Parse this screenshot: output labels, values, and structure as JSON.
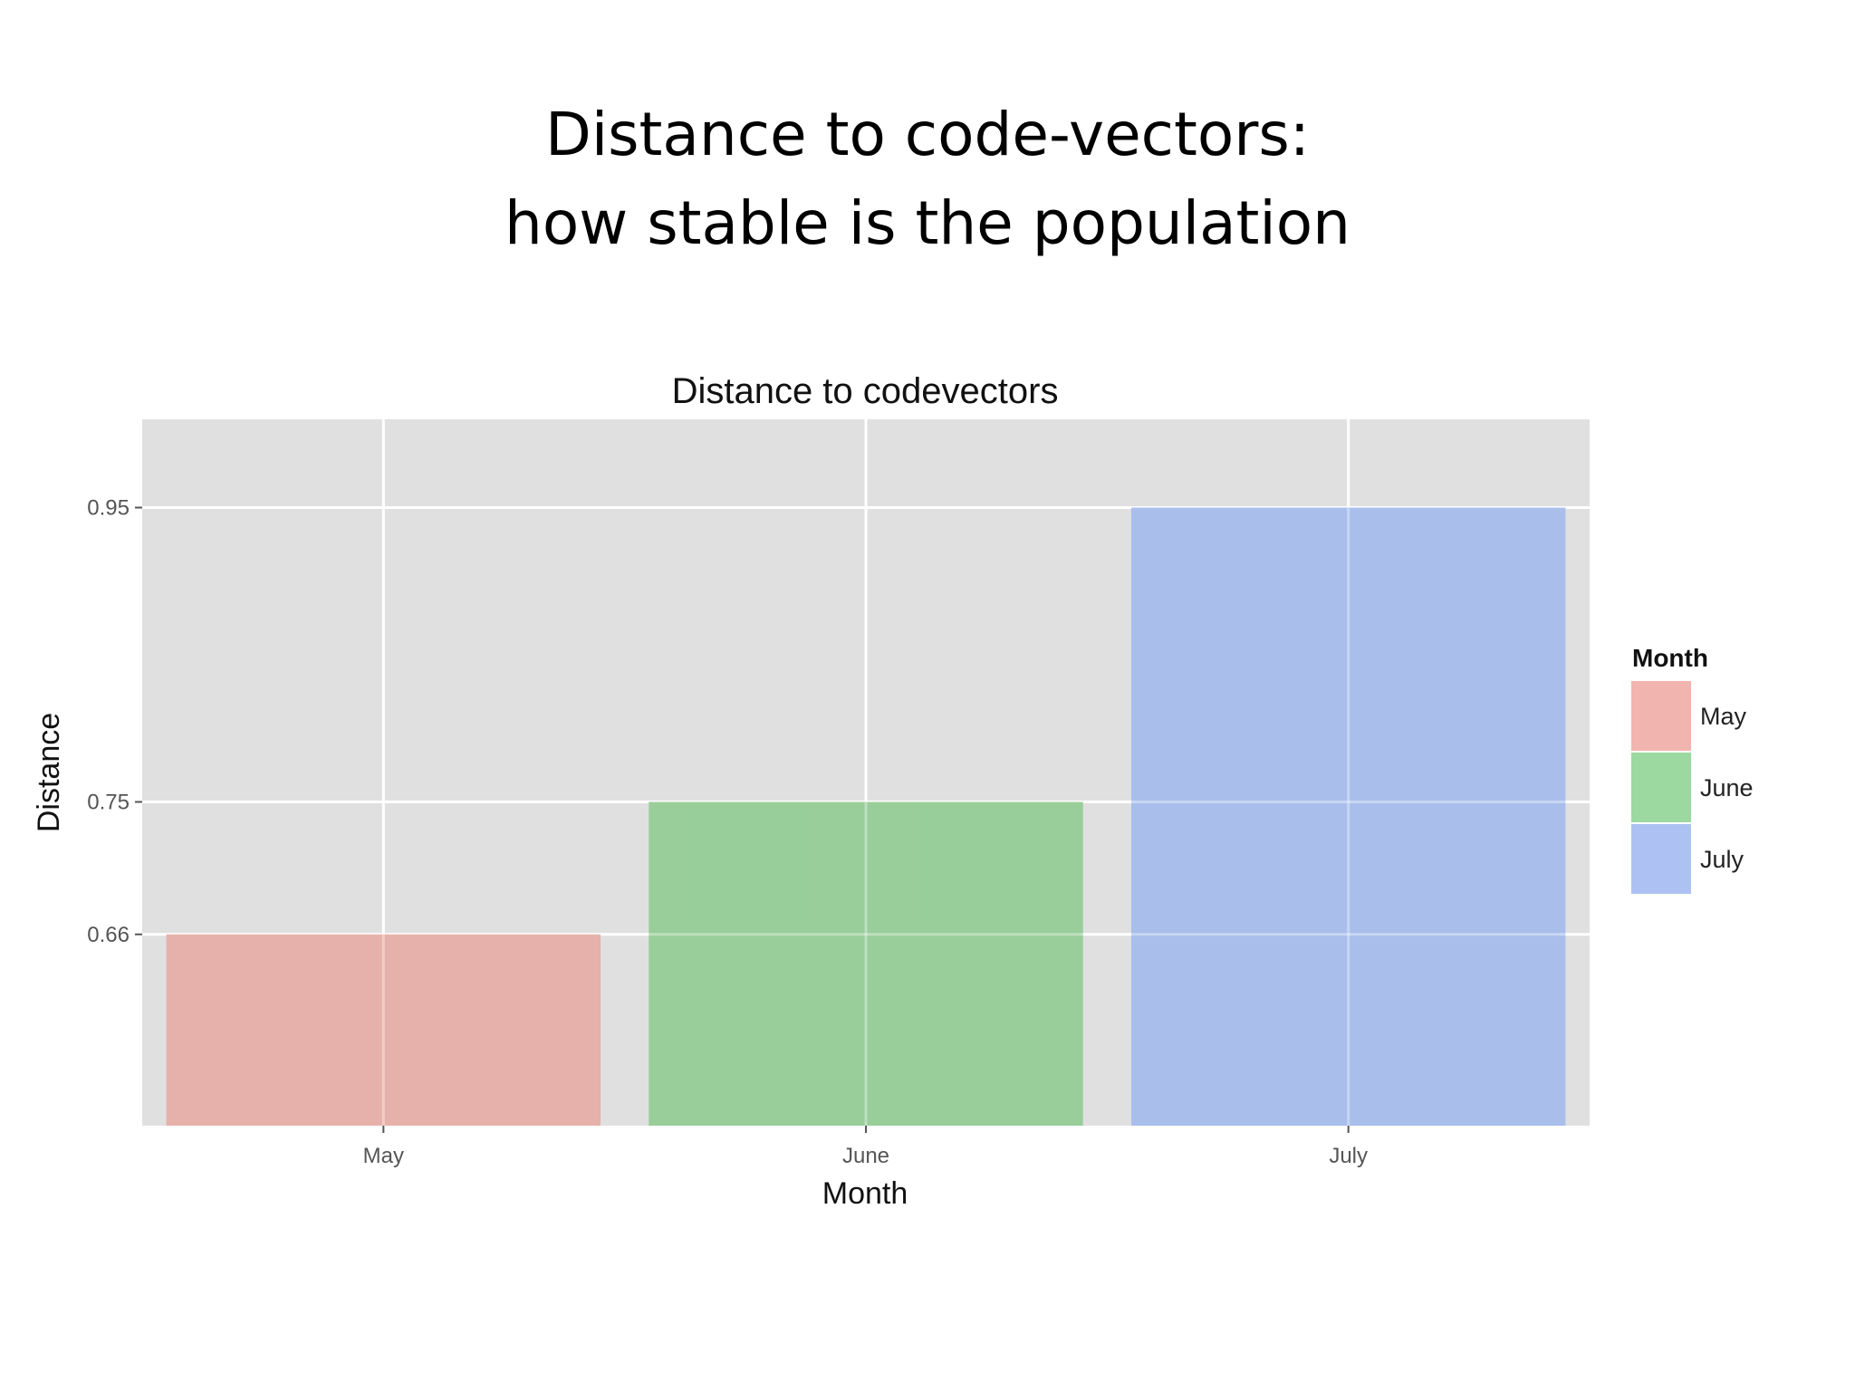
{
  "slide": {
    "title_line1": "Distance to code-vectors:",
    "title_line2": "how stable is the population"
  },
  "chart_data": {
    "type": "bar",
    "title": "Distance to codevectors",
    "xlabel": "Month",
    "ylabel": "Distance",
    "categories": [
      "May",
      "June",
      "July"
    ],
    "values": [
      0.66,
      0.75,
      0.95
    ],
    "yticks": [
      "0.66",
      "0.75",
      "0.95"
    ],
    "colors": [
      "#e6aca6",
      "#92cc94",
      "#a4bbec"
    ],
    "legend": {
      "title": "Month",
      "position": "right",
      "entries": [
        "May",
        "June",
        "July"
      ],
      "colors": [
        "#f2b4af",
        "#9bd9a0",
        "#adc2f2"
      ]
    },
    "panel_background": "#e0e0e0",
    "grid": true
  }
}
